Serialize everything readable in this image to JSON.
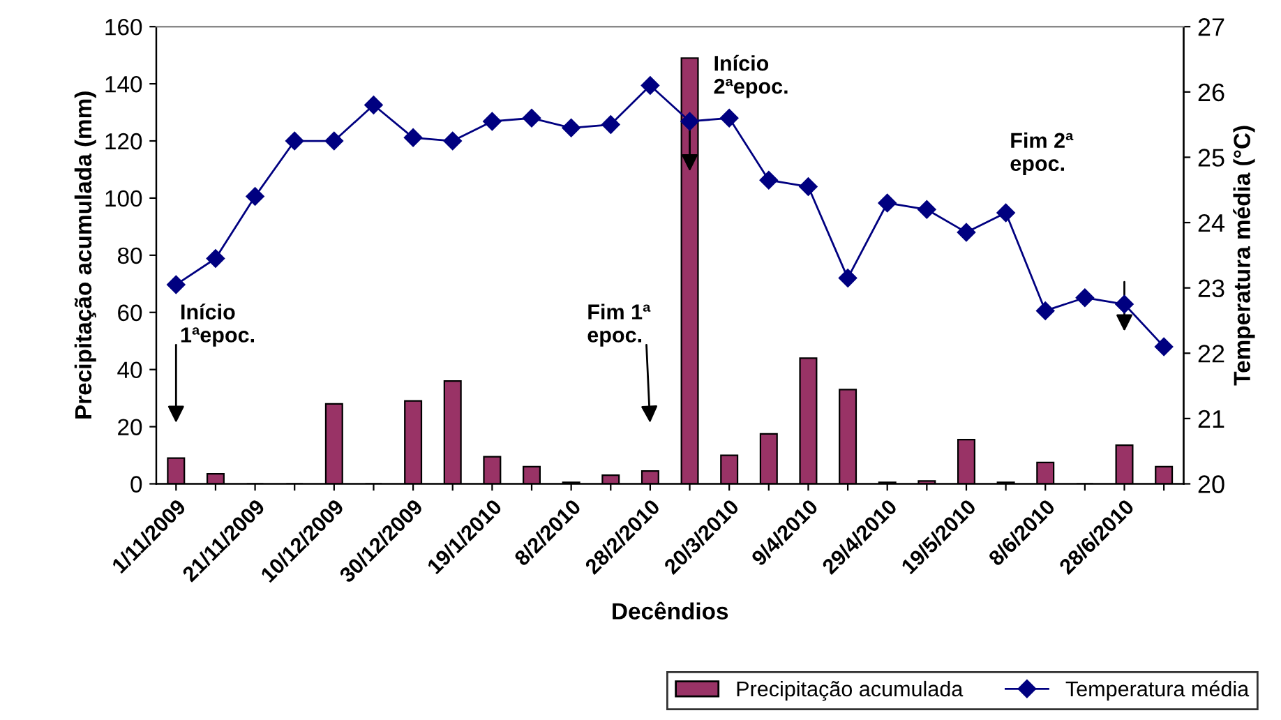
{
  "chart_data": {
    "type": "bar",
    "xlabel": "Decêndios",
    "ylabel": "Precipitação acumulada (mm)",
    "y2label": "Temperatura média (°C)",
    "categories": [
      "1/11/2009",
      null,
      "21/11/2009",
      null,
      "10/12/2009",
      null,
      "30/12/2009",
      null,
      "19/1/2010",
      null,
      "8/2/2010",
      null,
      "28/2/2010",
      null,
      "20/3/2010",
      null,
      "9/4/2010",
      null,
      "29/4/2010",
      null,
      "19/5/2010",
      null,
      "8/6/2010",
      null,
      "28/6/2010",
      null
    ],
    "series": [
      {
        "name": "Precipitação acumulada",
        "color": "#993366",
        "values": [
          9,
          3.5,
          0,
          0,
          28,
          0,
          29,
          36,
          9.5,
          6,
          0.5,
          3,
          4.5,
          149,
          10,
          17.5,
          44,
          33,
          0.5,
          1,
          15.5,
          0.5,
          7.5,
          0,
          13.5,
          6
        ]
      },
      {
        "name": "Temperatura média",
        "type": "line",
        "axis": "y2",
        "color": "#000080",
        "marker": "diamond",
        "values": [
          23.05,
          23.45,
          24.4,
          25.25,
          25.25,
          25.8,
          25.3,
          25.25,
          25.55,
          25.6,
          25.45,
          25.5,
          26.1,
          25.55,
          25.6,
          24.65,
          24.55,
          23.15,
          24.3,
          24.2,
          23.85,
          24.15,
          22.65,
          22.85,
          22.75,
          22.1
        ]
      }
    ],
    "ylim": [
      0,
      160
    ],
    "yticks": [
      0,
      20,
      40,
      60,
      80,
      100,
      120,
      140,
      160
    ],
    "y2lim": [
      20,
      27
    ],
    "y2ticks": [
      20,
      21,
      22,
      23,
      24,
      25,
      26,
      27
    ],
    "annotations": [
      "Início\n1ªepoc.",
      "Fim 1ª\nepoc.",
      "Início\n2ªepoc.",
      "Fim 2ª\nepoc."
    ],
    "legend": "bottom",
    "grid": false
  }
}
